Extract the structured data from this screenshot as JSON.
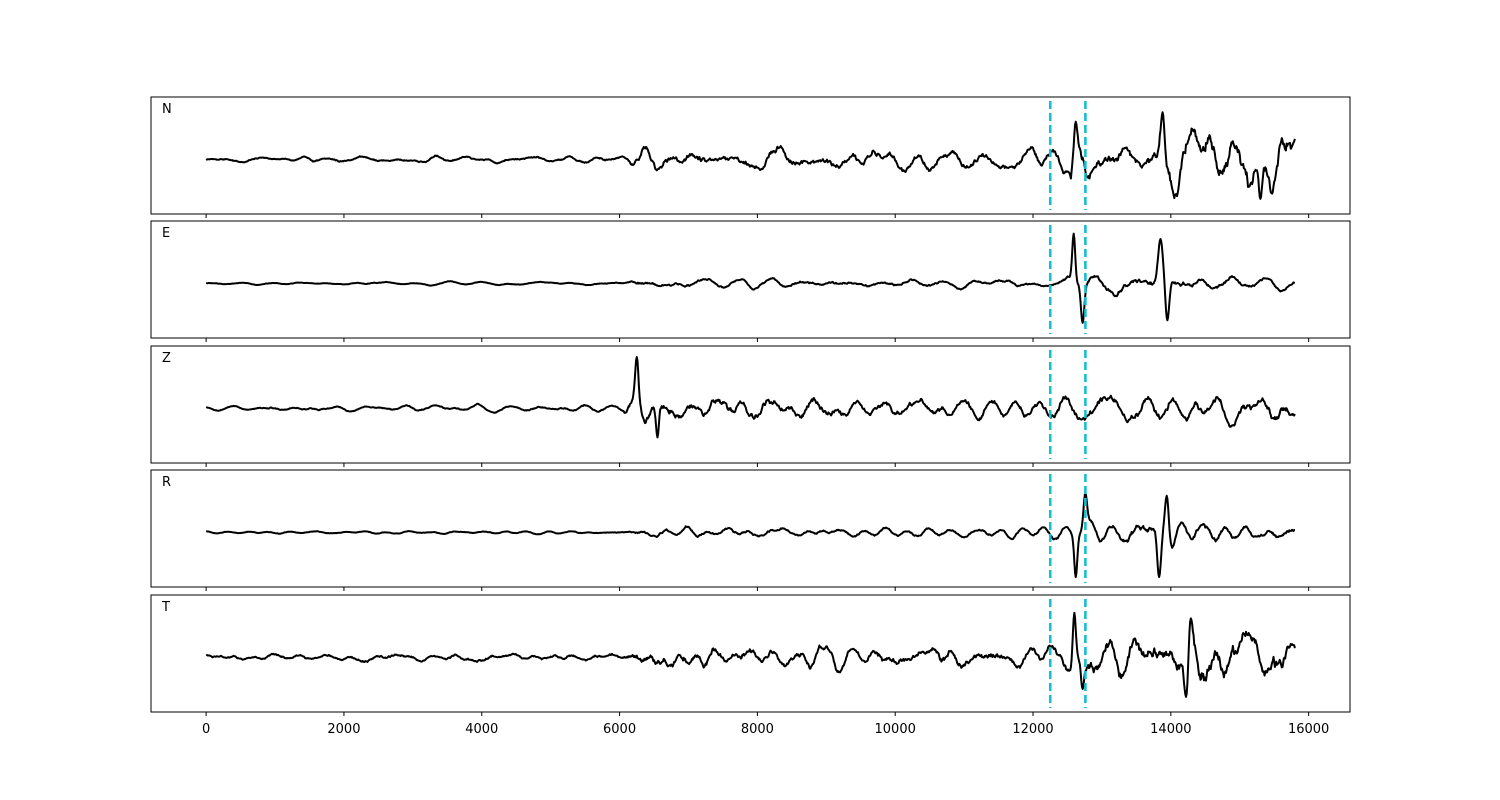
{
  "chart_data": {
    "type": "line",
    "x_ticks": [
      0,
      2000,
      4000,
      6000,
      8000,
      10000,
      12000,
      14000,
      16000
    ],
    "x_tick_labels": [
      "0",
      "2000",
      "4000",
      "6000",
      "8000",
      "10000",
      "12000",
      "14000",
      "16000"
    ],
    "xlim": [
      -800,
      16600
    ],
    "x_range": [
      0,
      15800
    ],
    "ylim": [
      -1.0,
      1.0
    ],
    "markers": {
      "x": [
        12250,
        12760
      ],
      "color": "#17becf",
      "style": "dashed"
    },
    "line_color": "#000000",
    "grid": false,
    "panels": [
      {
        "label": "N",
        "envelope": [
          [
            0,
            0.05
          ],
          [
            6100,
            0.07
          ],
          [
            6250,
            0.22
          ],
          [
            12200,
            0.22
          ],
          [
            12500,
            0.3
          ],
          [
            12580,
            0.7
          ],
          [
            12700,
            0.55
          ],
          [
            12900,
            0.25
          ],
          [
            13800,
            0.4
          ],
          [
            13860,
            0.9
          ],
          [
            14000,
            0.6
          ],
          [
            14200,
            0.75
          ],
          [
            14800,
            0.55
          ],
          [
            15300,
            0.75
          ],
          [
            15800,
            0.5
          ]
        ],
        "events": [
          {
            "x": 6250,
            "amp": 0.0,
            "width": 40
          },
          {
            "x": 12620,
            "amp": 0.72,
            "width": 35
          },
          {
            "x": 13880,
            "amp": 0.9,
            "width": 40
          },
          {
            "x": 15300,
            "amp": -0.75,
            "width": 40
          }
        ]
      },
      {
        "label": "E",
        "envelope": [
          [
            0,
            0.03
          ],
          [
            6100,
            0.04
          ],
          [
            6250,
            0.12
          ],
          [
            12200,
            0.1
          ],
          [
            12500,
            0.15
          ],
          [
            13100,
            0.25
          ],
          [
            13500,
            0.3
          ],
          [
            13900,
            0.3
          ],
          [
            14200,
            0.2
          ],
          [
            15800,
            0.15
          ]
        ],
        "events": [
          {
            "x": 12590,
            "amp": 0.95,
            "width": 30
          },
          {
            "x": 12720,
            "amp": -0.75,
            "width": 35
          },
          {
            "x": 13850,
            "amp": 0.85,
            "width": 45
          },
          {
            "x": 13950,
            "amp": -0.7,
            "width": 40
          }
        ]
      },
      {
        "label": "Z",
        "envelope": [
          [
            0,
            0.06
          ],
          [
            6000,
            0.08
          ],
          [
            6250,
            0.45
          ],
          [
            7200,
            0.35
          ],
          [
            10000,
            0.3
          ],
          [
            12200,
            0.25
          ],
          [
            12700,
            0.35
          ],
          [
            15800,
            0.4
          ]
        ],
        "events": [
          {
            "x": 6250,
            "amp": 1.0,
            "width": 30
          },
          {
            "x": 6550,
            "amp": -0.55,
            "width": 30
          }
        ]
      },
      {
        "label": "R",
        "envelope": [
          [
            0,
            0.03
          ],
          [
            6100,
            0.04
          ],
          [
            6250,
            0.12
          ],
          [
            12200,
            0.1
          ],
          [
            12500,
            0.15
          ],
          [
            13100,
            0.25
          ],
          [
            13500,
            0.3
          ],
          [
            13900,
            0.3
          ],
          [
            14200,
            0.25
          ],
          [
            15800,
            0.2
          ]
        ],
        "events": [
          {
            "x": 12620,
            "amp": -0.85,
            "width": 30
          },
          {
            "x": 12760,
            "amp": 0.75,
            "width": 35
          },
          {
            "x": 13830,
            "amp": -0.85,
            "width": 40
          },
          {
            "x": 13940,
            "amp": 0.7,
            "width": 40
          }
        ]
      },
      {
        "label": "T",
        "envelope": [
          [
            0,
            0.07
          ],
          [
            6100,
            0.09
          ],
          [
            6250,
            0.25
          ],
          [
            12200,
            0.2
          ],
          [
            12500,
            0.3
          ],
          [
            12800,
            0.4
          ],
          [
            13800,
            0.45
          ],
          [
            14300,
            0.6
          ],
          [
            15000,
            0.55
          ],
          [
            15800,
            0.45
          ]
        ],
        "events": [
          {
            "x": 12600,
            "amp": 0.85,
            "width": 30
          },
          {
            "x": 12720,
            "amp": -0.6,
            "width": 35
          },
          {
            "x": 14280,
            "amp": 0.85,
            "width": 40
          },
          {
            "x": 14220,
            "amp": -0.75,
            "width": 40
          }
        ]
      }
    ]
  }
}
